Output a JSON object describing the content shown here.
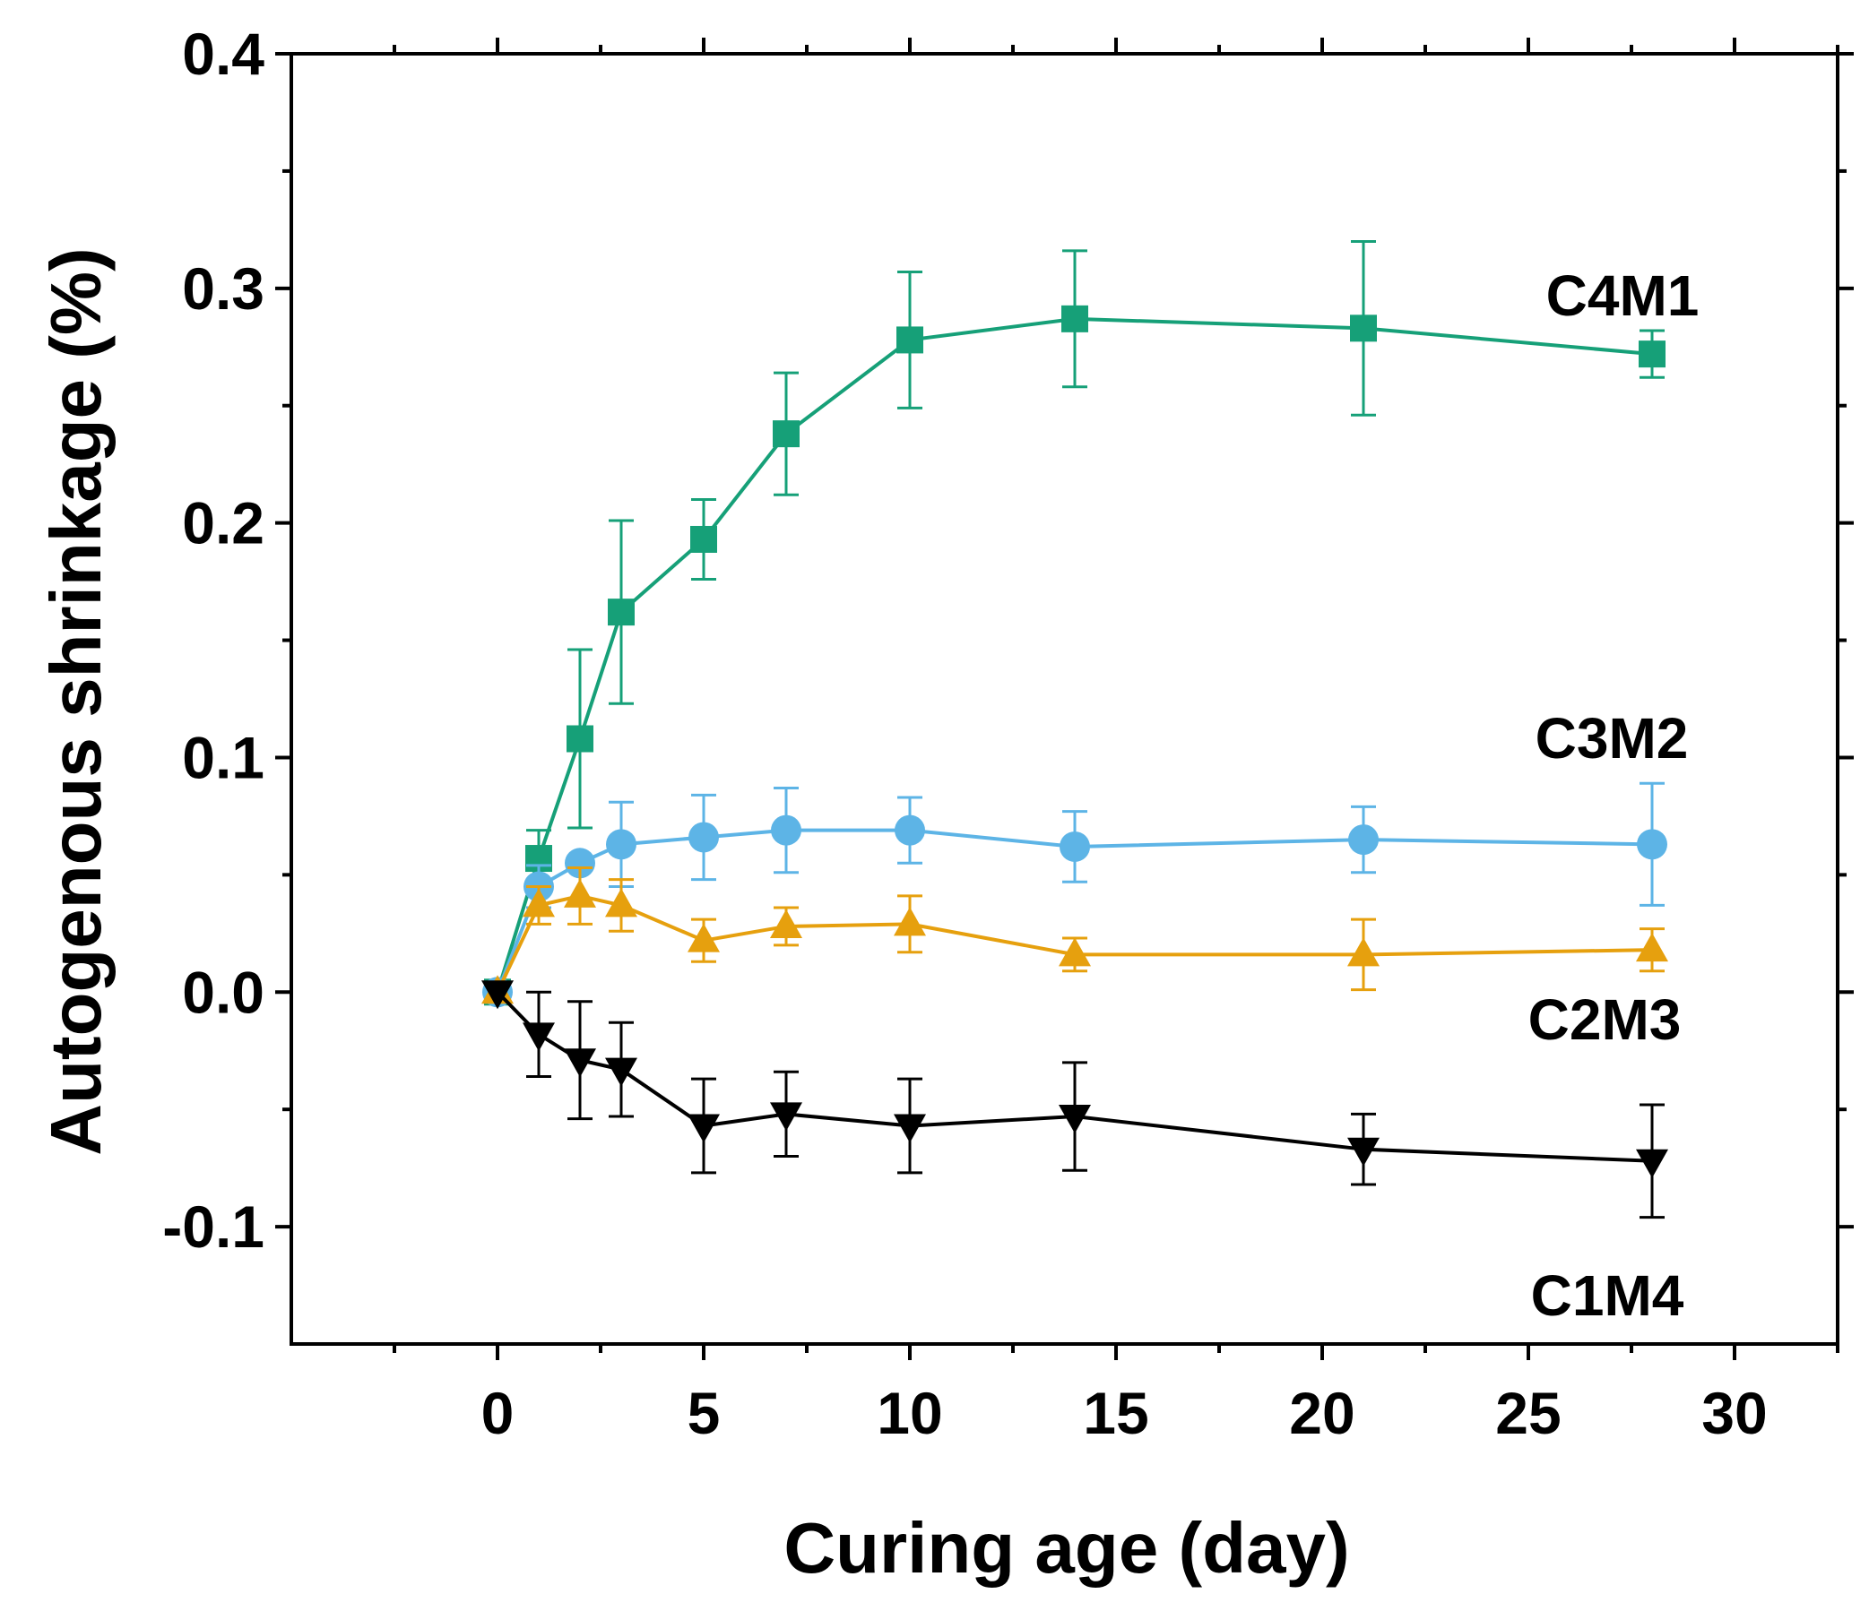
{
  "chart_data": {
    "type": "line",
    "title": "",
    "xlabel": "Curing age (day)",
    "ylabel": "Autogenous shrinkage (%)",
    "xlim": [
      -5,
      32.5
    ],
    "ylim": [
      -0.15,
      0.4
    ],
    "x_ticks": [
      0,
      5,
      10,
      15,
      20,
      25,
      30
    ],
    "x_tick_labels": [
      "0",
      "5",
      "10",
      "15",
      "20",
      "25",
      "30"
    ],
    "y_ticks": [
      -0.1,
      0.0,
      0.1,
      0.2,
      0.3,
      0.4
    ],
    "y_tick_labels": [
      "-0.1",
      "0.0",
      "0.1",
      "0.2",
      "0.3",
      "0.4"
    ],
    "x": [
      0,
      1,
      2,
      3,
      5,
      7,
      10,
      14,
      21,
      28
    ],
    "series": [
      {
        "name": "C4M1",
        "color": "#16a078",
        "marker": "square",
        "x": [
          0,
          1,
          2,
          3,
          5,
          7,
          10,
          14,
          21,
          28
        ],
        "values": [
          0.0,
          0.057,
          0.108,
          0.162,
          0.193,
          0.238,
          0.278,
          0.287,
          0.283,
          0.272
        ],
        "errors": [
          0.0,
          0.012,
          0.038,
          0.039,
          0.017,
          0.026,
          0.029,
          0.029,
          0.037,
          0.01
        ]
      },
      {
        "name": "C3M2",
        "color": "#5db4e6",
        "marker": "circle",
        "x": [
          0,
          1,
          2,
          3,
          5,
          7,
          10,
          14,
          21,
          28
        ],
        "values": [
          0.0,
          0.045,
          0.055,
          0.063,
          0.066,
          0.069,
          0.069,
          0.062,
          0.065,
          0.063
        ],
        "errors": [
          0.0,
          0.009,
          0.0,
          0.018,
          0.018,
          0.018,
          0.014,
          0.015,
          0.014,
          0.026
        ]
      },
      {
        "name": "C2M3",
        "color": "#e6a00e",
        "marker": "triangle-up",
        "x": [
          0,
          1,
          2,
          3,
          5,
          7,
          10,
          14,
          21,
          28
        ],
        "values": [
          0.0,
          0.037,
          0.041,
          0.037,
          0.022,
          0.028,
          0.029,
          0.016,
          0.016,
          0.018
        ],
        "errors": [
          0.0,
          0.008,
          0.012,
          0.011,
          0.009,
          0.008,
          0.012,
          0.007,
          0.015,
          0.009
        ]
      },
      {
        "name": "C1M4",
        "color": "#000000",
        "marker": "triangle-down",
        "x": [
          0,
          1,
          2,
          3,
          5,
          7,
          10,
          14,
          21,
          28
        ],
        "values": [
          0.0,
          -0.018,
          -0.029,
          -0.033,
          -0.057,
          -0.052,
          -0.057,
          -0.053,
          -0.067,
          -0.072
        ],
        "errors": [
          0.0,
          0.018,
          0.025,
          0.02,
          0.02,
          0.018,
          0.02,
          0.023,
          0.015,
          0.024
        ]
      }
    ],
    "annotations": [
      "C4M1",
      "C3M2",
      "C2M3",
      "C1M4"
    ]
  }
}
